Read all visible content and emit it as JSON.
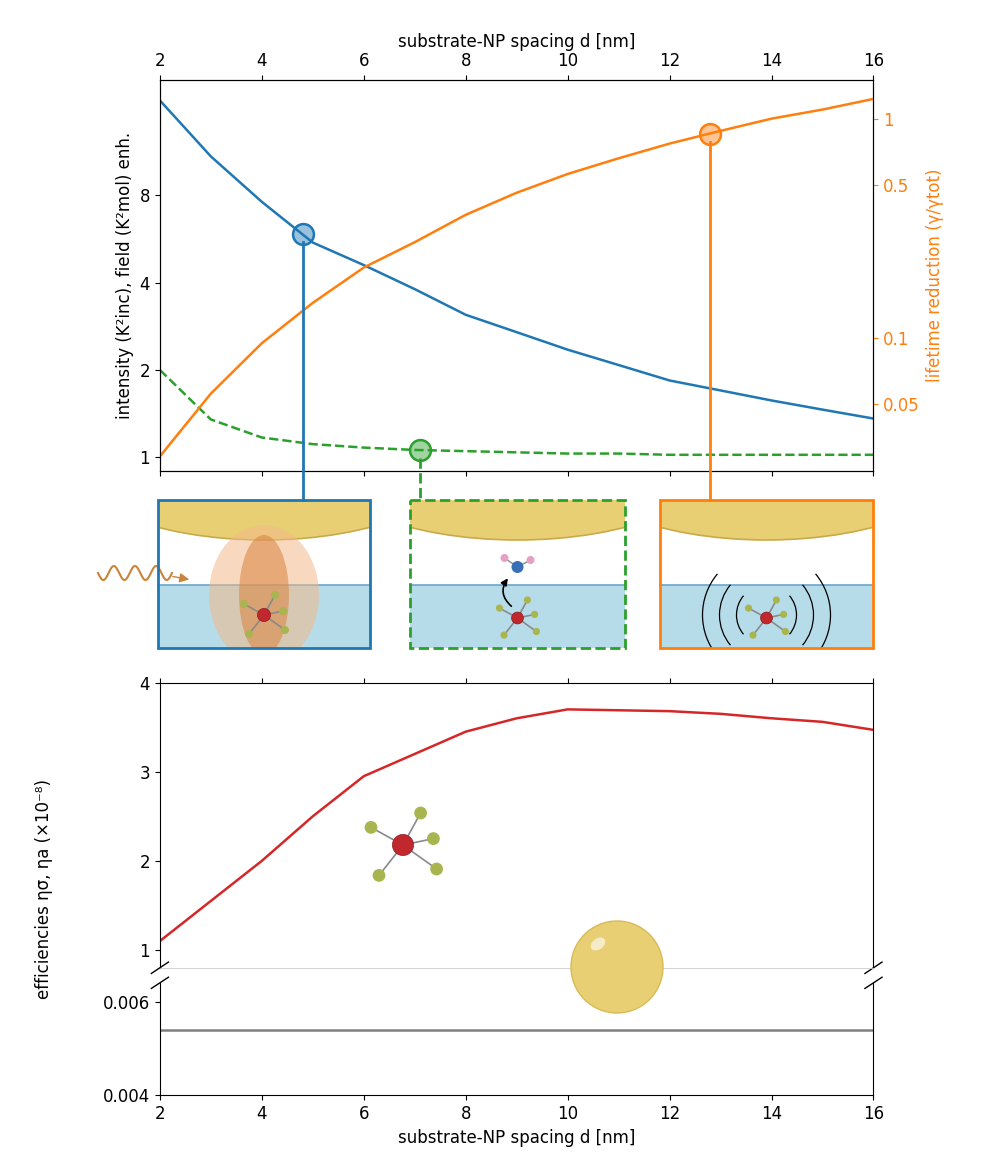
{
  "chart_data": [
    {
      "type": "line",
      "xlabel": "substrate-NP spacing d [nm]",
      "ylabel": "intensity (K²inc), field (K²mol) enh.",
      "y2label": "lifetime reduction (γ/γtot)",
      "x": [
        2,
        3,
        4,
        5,
        6,
        7,
        8,
        9,
        10,
        11,
        12,
        13,
        14,
        15,
        16
      ],
      "xlim": [
        2,
        16
      ],
      "xticks": [
        2,
        4,
        6,
        8,
        10,
        12,
        14,
        16
      ],
      "ylim": [
        0.9,
        20
      ],
      "yticks": [
        1,
        2,
        4,
        8
      ],
      "y2lim": [
        0.025,
        1.5
      ],
      "y2ticks": [
        0.05,
        0.1,
        0.5,
        1
      ],
      "log": "y",
      "series": [
        {
          "color": "#1f77b4",
          "line_style": "solid",
          "values": [
            17,
            10.9,
            7.6,
            5.5,
            4.6,
            3.8,
            3.1,
            2.7,
            2.35,
            2.08,
            1.84,
            1.7,
            1.57,
            1.46,
            1.36
          ],
          "highlight": {
            "x": 4.8,
            "y": 5.9
          }
        },
        {
          "color": "#2ca02c",
          "line_style": "dashed",
          "values": [
            2.0,
            1.35,
            1.17,
            1.11,
            1.08,
            1.06,
            1.05,
            1.04,
            1.03,
            1.03,
            1.02,
            1.02,
            1.02,
            1.02,
            1.02
          ],
          "highlight": {
            "x": 7.1,
            "y": 1.06
          }
        },
        {
          "color": "#ff7f0e",
          "line_style": "solid",
          "axis": "y2",
          "values": [
            0.029,
            0.056,
            0.095,
            0.145,
            0.21,
            0.274,
            0.365,
            0.46,
            0.56,
            0.66,
            0.77,
            0.88,
            1.0,
            1.1,
            1.23
          ],
          "highlight": {
            "x": 12.8,
            "y": 0.85
          }
        }
      ]
    },
    {
      "type": "line",
      "ylabel": "efficiencies ησ, ηa (×10⁻⁸)",
      "x": [
        2,
        3,
        4,
        5,
        6,
        7,
        8,
        9,
        10,
        11,
        12,
        13,
        14,
        15,
        16
      ],
      "xlim": [
        2,
        16
      ],
      "xticks": [
        2,
        4,
        6,
        8,
        10,
        12,
        14,
        16
      ],
      "ylim": [
        0.8,
        4
      ],
      "yticks": [
        1,
        2,
        3,
        4
      ],
      "tick_labels": "y",
      "series": [
        {
          "color": "#d62728",
          "line_style": "solid",
          "values": [
            1.1,
            1.55,
            2.0,
            2.5,
            2.95,
            3.2,
            3.45,
            3.6,
            3.7,
            3.69,
            3.68,
            3.65,
            3.6,
            3.56,
            3.47
          ]
        }
      ]
    },
    {
      "type": "line",
      "xlabel": "substrate-NP spacing d [nm]",
      "x": [
        2,
        3,
        4,
        5,
        6,
        7,
        8,
        9,
        10,
        11,
        12,
        13,
        14,
        15,
        16
      ],
      "xlim": [
        2,
        16
      ],
      "xticks": [
        2,
        4,
        6,
        8,
        10,
        12,
        14,
        16
      ],
      "ylim": [
        0.004,
        0.0064
      ],
      "yticks": [
        0.004,
        0.006
      ],
      "series": [
        {
          "color": "#808080",
          "line_style": "solid",
          "values": [
            0.0054,
            0.0054,
            0.0054,
            0.0054,
            0.0054,
            0.0054,
            0.0054,
            0.0054,
            0.0054,
            0.0054,
            0.0054,
            0.0054,
            0.0054,
            0.0054,
            0.0054
          ]
        }
      ]
    }
  ]
}
